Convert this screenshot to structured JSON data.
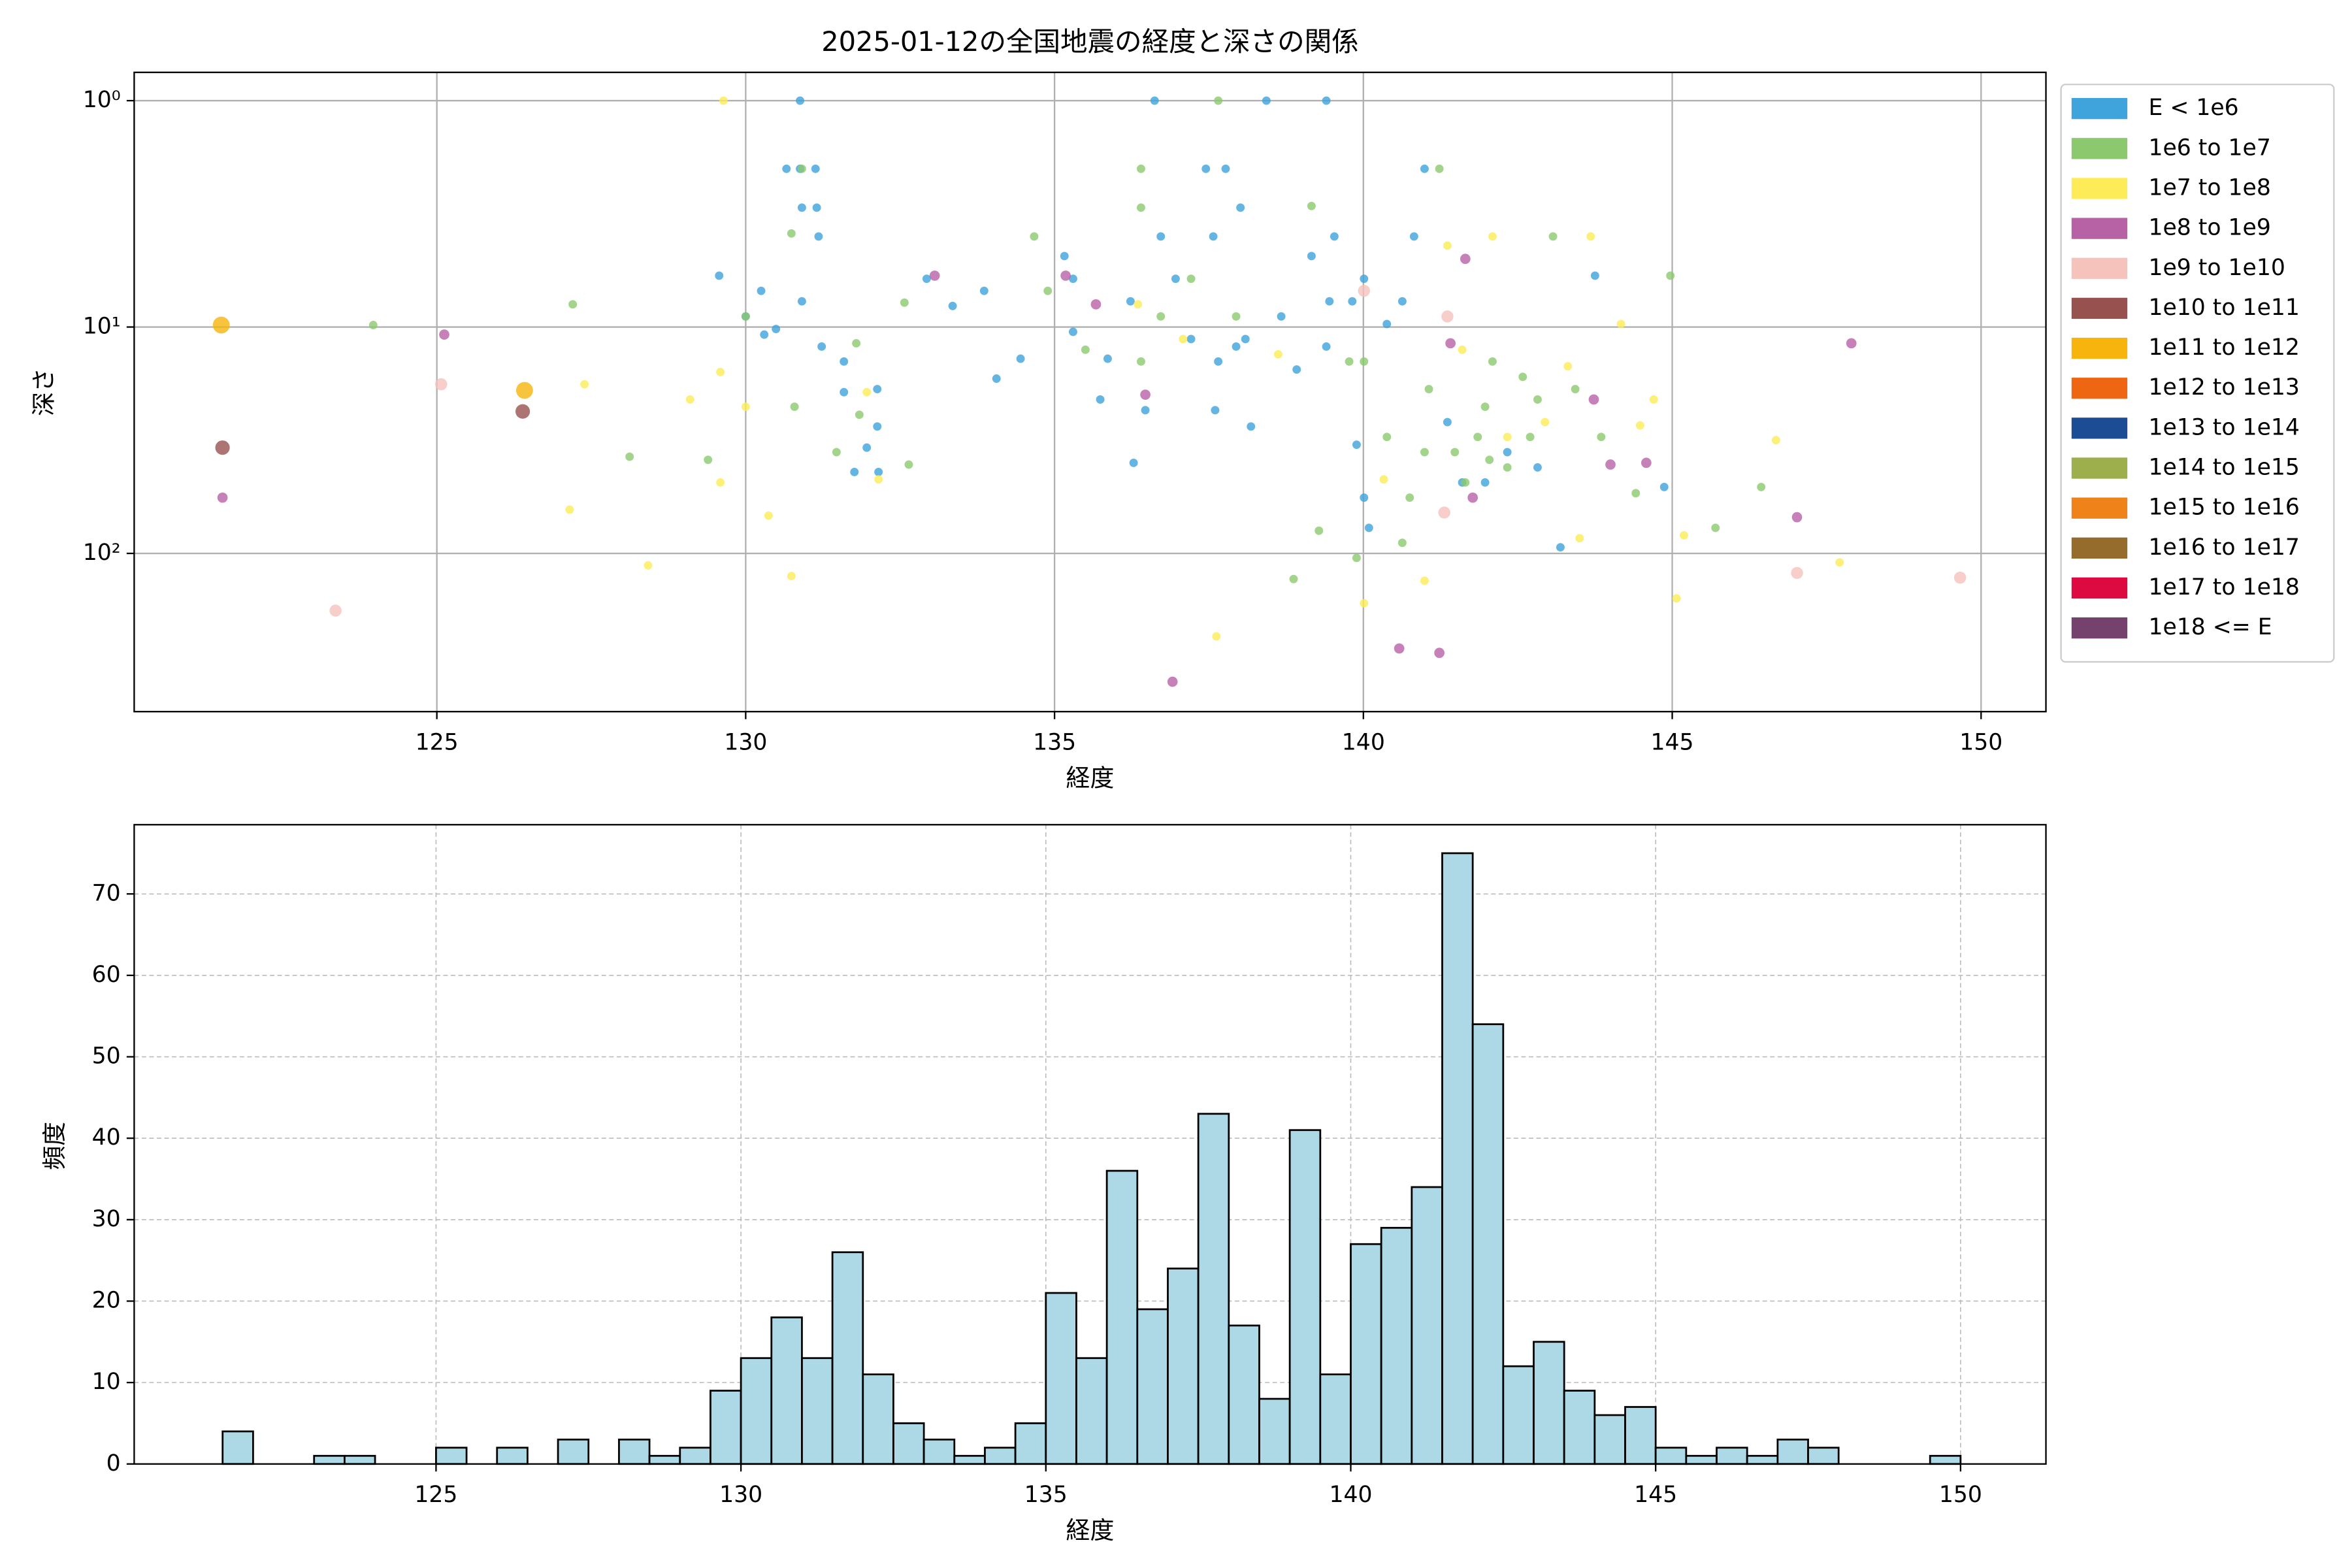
{
  "chart_data": [
    {
      "type": "scatter",
      "title": "2025-01-12の全国地震の経度と深さの関係",
      "x_label": "経度",
      "y_label": "深さ",
      "xlim": [
        120.1,
        151.05
      ],
      "xticks": [
        125,
        130,
        135,
        140,
        145,
        150
      ],
      "yscale": "log",
      "ylim": [
        500,
        0.75
      ],
      "yticks": [
        {
          "value": 1,
          "label": "10⁰"
        },
        {
          "value": 10,
          "label": "10¹"
        },
        {
          "value": 100,
          "label": "10²"
        }
      ],
      "grid": true,
      "legend": "outside upper right",
      "series": [
        {
          "name": "E < 1e6",
          "color": "#3fa3dc",
          "x": [
            129.57,
            130.0,
            130.25,
            130.3,
            130.49,
            130.66,
            130.88,
            130.88,
            131.13,
            130.91,
            131.15,
            131.18,
            130.91,
            131.23,
            131.59,
            131.59,
            132.13,
            132.13,
            131.96,
            131.76,
            132.15,
            132.93,
            133.35,
            133.86,
            134.06,
            134.45,
            135.16,
            135.3,
            135.3,
            135.86,
            136.23,
            136.28,
            136.62,
            136.72,
            136.96,
            137.45,
            137.57,
            137.77,
            138.01,
            137.94,
            138.43,
            138.67,
            138.92,
            139.16,
            139.4,
            139.45,
            139.4,
            139.53,
            139.82,
            140.01,
            139.89,
            140.01,
            140.09,
            140.38,
            140.63,
            140.82,
            140.99,
            141.36,
            141.6,
            141.97,
            142.33,
            142.82,
            143.19,
            143.75,
            144.87,
            137.65,
            137.21,
            138.09,
            137.6,
            138.18,
            136.47,
            135.74
          ],
          "values": [
            5.93,
            8.98,
            6.92,
            10.8,
            10.2,
            2.0,
            2.0,
            1,
            2.0,
            2.97,
            2.97,
            3.98,
            7.7,
            12.2,
            14.2,
            19.4,
            18.8,
            27.5,
            34.1,
            43.7,
            43.7,
            6.12,
            8.07,
            6.92,
            16.9,
            13.8,
            4.86,
            6.12,
            10.5,
            13.8,
            7.7,
            39.8,
            1,
            3.98,
            6.12,
            2.0,
            3.98,
            2.0,
            2.97,
            12.2,
            1,
            8.98,
            15.4,
            4.86,
            1,
            7.7,
            12.2,
            3.98,
            7.7,
            6.12,
            33.1,
            56.7,
            77.1,
            9.7,
            7.7,
            3.98,
            2.0,
            26.3,
            48.6,
            48.6,
            35.7,
            41.7,
            94.0,
            5.93,
            50.9,
            14.2,
            11.3,
            11.3,
            23.3,
            27.5,
            23.3,
            20.9
          ]
        },
        {
          "name": "1e6 to 1e7",
          "color": "#8cc96e",
          "x": [
            123.97,
            127.2,
            128.12,
            129.39,
            130.0,
            130.74,
            130.79,
            130.91,
            131.79,
            131.47,
            131.84,
            132.57,
            132.64,
            134.67,
            134.89,
            135.5,
            136.4,
            136.4,
            136.4,
            136.72,
            137.21,
            137.65,
            137.94,
            139.16,
            138.87,
            139.28,
            139.77,
            139.89,
            140.01,
            140.38,
            140.63,
            141.06,
            141.23,
            141.48,
            141.65,
            141.97,
            142.09,
            142.33,
            142.58,
            142.82,
            143.07,
            143.43,
            143.85,
            144.41,
            144.97,
            145.7,
            146.44,
            140.99,
            140.75,
            141.85,
            142.04,
            142.7
          ],
          "values": [
            9.8,
            7.94,
            37.4,
            38.6,
            8.98,
            3.86,
            22.5,
            2.0,
            11.8,
            35.7,
            24.4,
            7.8,
            40.5,
            3.98,
            6.92,
            12.6,
            2.0,
            2.97,
            14.2,
            8.98,
            6.12,
            1,
            8.98,
            2.92,
            129.8,
            79.4,
            14.2,
            104.7,
            14.2,
            30.6,
            89.8,
            18.8,
            2.0,
            35.7,
            48.6,
            22.5,
            14.2,
            41.7,
            16.6,
            20.9,
            3.98,
            18.8,
            30.6,
            54.2,
            5.93,
            77.1,
            50.9,
            35.7,
            56.7,
            30.6,
            38.6,
            30.6
          ]
        },
        {
          "name": "1e7 to 1e8",
          "color": "#fdec58",
          "x": [
            129.64,
            129.59,
            129.59,
            129.1,
            130.0,
            130.37,
            130.74,
            127.39,
            127.15,
            128.42,
            131.96,
            132.15,
            136.35,
            137.08,
            137.62,
            138.62,
            140.01,
            140.33,
            140.99,
            141.36,
            142.09,
            142.33,
            142.94,
            143.5,
            143.68,
            144.17,
            144.48,
            144.7,
            145.19,
            145.07,
            146.68,
            147.71,
            143.31,
            141.6
          ],
          "values": [
            1,
            15.8,
            48.6,
            20.9,
            22.5,
            68.1,
            125.9,
            17.9,
            64.1,
            113,
            19.4,
            47.1,
            7.94,
            11.3,
            232.6,
            13.2,
            166,
            47.1,
            132,
            4.37,
            3.98,
            30.6,
            26.3,
            85.7,
            3.98,
            9.7,
            27.2,
            20.9,
            83.2,
            158,
            31.6,
            109.6,
            14.9,
            12.6
          ]
        },
        {
          "name": "1e8 to 1e9",
          "color": "#b862a6",
          "x": [
            121.53,
            125.12,
            133.06,
            135.18,
            135.67,
            136.47,
            136.91,
            140.58,
            141.23,
            141.41,
            141.65,
            141.77,
            143.73,
            144.0,
            144.58,
            147.02,
            147.9
          ],
          "values": [
            56.7,
            10.8,
            5.93,
            5.93,
            7.94,
            19.9,
            369,
            263,
            275,
            11.8,
            5.0,
            56.7,
            20.9,
            40.5,
            39.8,
            69.2,
            11.8
          ]
        },
        {
          "name": "1e9 to 1e10",
          "color": "#f5c2bc",
          "x": [
            123.36,
            125.07,
            140.01,
            141.36,
            141.31,
            147.02,
            149.66
          ],
          "values": [
            179,
            17.9,
            6.92,
            8.98,
            66,
            122,
            128
          ]
        },
        {
          "name": "1e10 to 1e11",
          "color": "#975250",
          "x": [
            121.53,
            126.39
          ],
          "values": [
            34.1,
            23.6
          ]
        },
        {
          "name": "1e11 to 1e12",
          "color": "#f6b40c",
          "x": [
            121.51,
            126.42
          ],
          "values": [
            9.8,
            19.05
          ]
        },
        {
          "name": "1e12 to 1e13",
          "color": "#ee6512",
          "x": [],
          "values": []
        },
        {
          "name": "1e13 to 1e14",
          "color": "#1c4c94",
          "x": [],
          "values": []
        },
        {
          "name": "1e14 to 1e15",
          "color": "#9caf4c",
          "x": [],
          "values": []
        },
        {
          "name": "1e15 to 1e16",
          "color": "#f0821a",
          "x": [],
          "values": []
        },
        {
          "name": "1e16 to 1e17",
          "color": "#956c2c",
          "x": [],
          "values": []
        },
        {
          "name": "1e17 to 1e18",
          "color": "#dc0a40",
          "x": [],
          "values": []
        },
        {
          "name": "1e18 <= E",
          "color": "#74426c",
          "x": [],
          "values": []
        }
      ]
    },
    {
      "type": "histogram",
      "x_label": "経度",
      "y_label": "頻度",
      "xlim": [
        120.05,
        151.4
      ],
      "xticks": [
        125,
        130,
        135,
        140,
        145,
        150
      ],
      "ylim": [
        0,
        78.5
      ],
      "yticks": [
        0,
        10,
        20,
        30,
        40,
        50,
        60,
        70
      ],
      "grid": true,
      "grid_linestyle": "dashed",
      "color": "#add8e6",
      "edgecolor": "#000000",
      "bins": [
        121.5,
        122,
        122.5,
        123,
        123.5,
        124,
        124.5,
        125,
        125.5,
        126,
        126.5,
        127,
        127.5,
        128,
        128.5,
        129,
        129.5,
        130,
        130.5,
        131,
        131.5,
        132,
        132.5,
        133,
        133.5,
        134,
        134.5,
        135,
        135.5,
        136,
        136.5,
        137,
        137.5,
        138,
        138.5,
        139,
        139.5,
        140,
        140.5,
        141,
        141.5,
        142,
        142.5,
        143,
        143.5,
        144,
        144.5,
        145,
        145.5,
        146,
        146.5,
        147,
        147.5,
        148,
        148.5,
        149,
        149.5,
        150
      ],
      "values": [
        4,
        0,
        0,
        1,
        1,
        0,
        0,
        2,
        0,
        2,
        0,
        3,
        0,
        3,
        1,
        2,
        9,
        13,
        18,
        13,
        26,
        11,
        5,
        3,
        1,
        2,
        5,
        21,
        13,
        36,
        19,
        24,
        43,
        17,
        8,
        41,
        11,
        27,
        29,
        34,
        75,
        54,
        12,
        15,
        9,
        6,
        7,
        2,
        1,
        2,
        1,
        3,
        2,
        0,
        0,
        0,
        1
      ]
    }
  ]
}
